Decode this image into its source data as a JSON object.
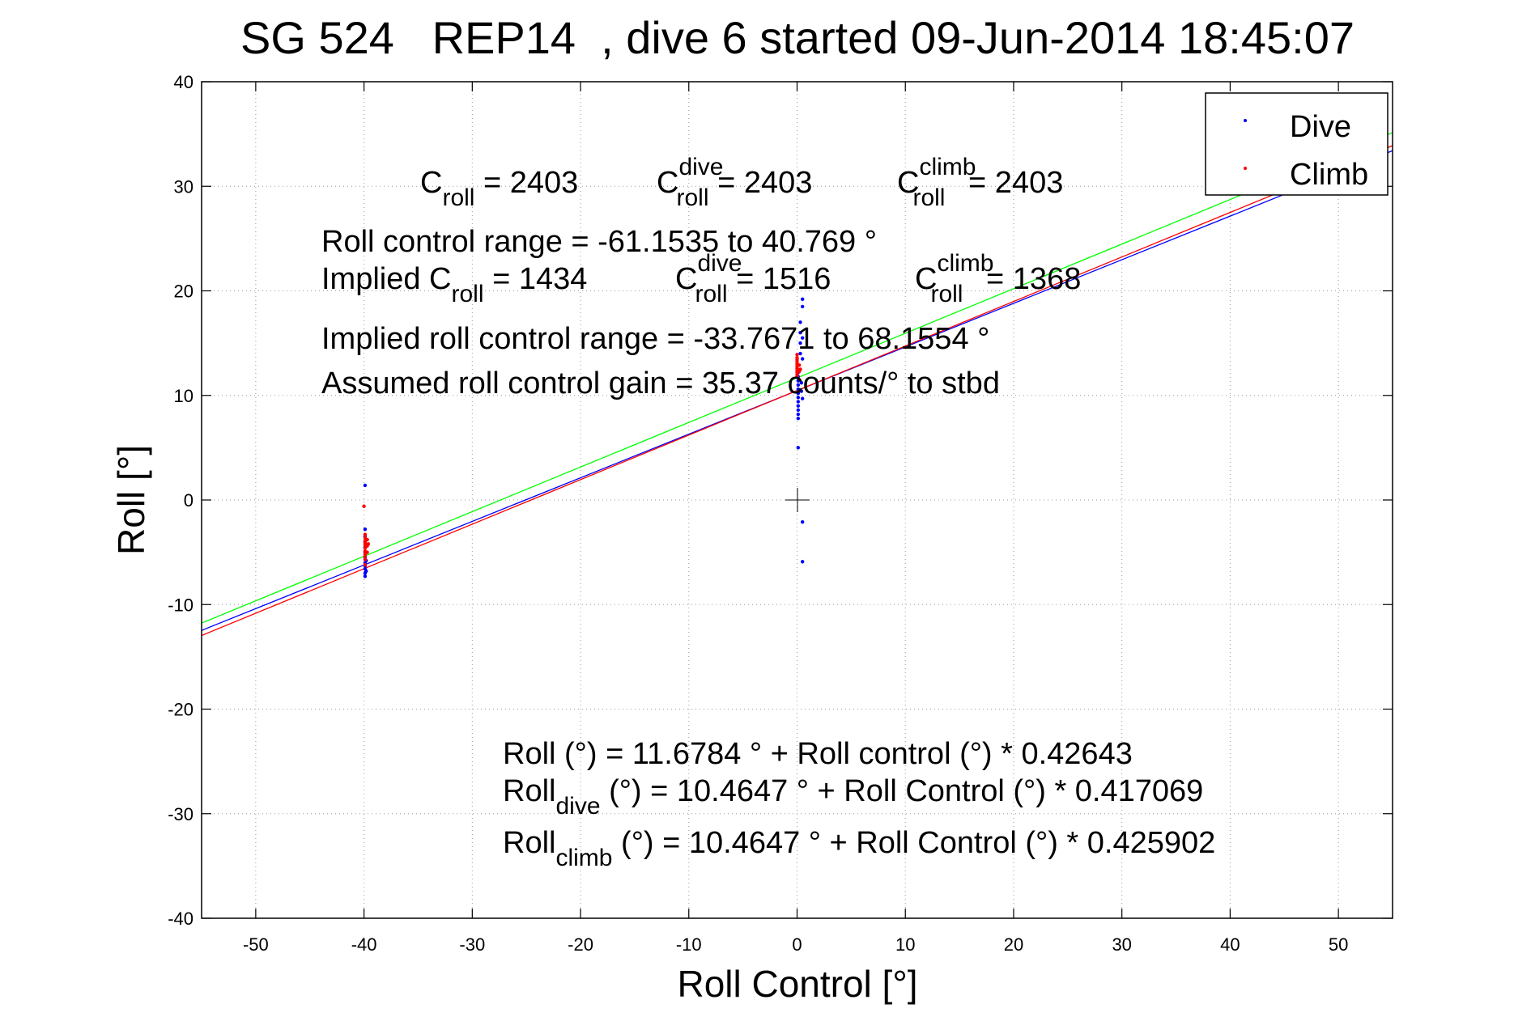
{
  "chart_data": {
    "type": "scatter",
    "title": "SG 524   REP14  , dive 6 started 09-Jun-2014 18:45:07",
    "xlabel": "Roll Control [°]",
    "ylabel": "Roll [°]",
    "xlim": [
      -55,
      55
    ],
    "ylim": [
      -40,
      40
    ],
    "xticks": [
      -50,
      -40,
      -30,
      -20,
      -10,
      0,
      10,
      20,
      30,
      40,
      50
    ],
    "yticks": [
      -40,
      -30,
      -20,
      -10,
      0,
      10,
      20,
      30,
      40
    ],
    "xtick_labels": [
      "-50",
      "-40",
      "-30",
      "-20",
      "-10",
      "0",
      "10",
      "20",
      "30",
      "40",
      "50"
    ],
    "ytick_labels": [
      "-40",
      "-30",
      "-20",
      "-10",
      "0",
      "10",
      "20",
      "30",
      "40"
    ],
    "grid": true,
    "legend": {
      "position": "top-right",
      "entries": [
        "Dive",
        "Climb"
      ]
    },
    "colors": {
      "dive": "#0000ff",
      "climb": "#ff0000",
      "fit_all": "#00ff00",
      "fit_dive": "#0000ff",
      "fit_climb": "#ff0000"
    },
    "series": [
      {
        "name": "Dive",
        "color": "#0000ff",
        "points": [
          [
            -39.9,
            1.4
          ],
          [
            -39.9,
            -2.8
          ],
          [
            -39.9,
            -3.5
          ],
          [
            -39.9,
            -4.0
          ],
          [
            -39.9,
            -4.5
          ],
          [
            -39.9,
            -5.0
          ],
          [
            -39.9,
            -5.5
          ],
          [
            -39.9,
            -6.0
          ],
          [
            -39.9,
            -6.3
          ],
          [
            -39.9,
            -6.6
          ],
          [
            -39.9,
            -7.0
          ],
          [
            -39.9,
            -7.3
          ],
          [
            -39.8,
            -5.8
          ],
          [
            -39.8,
            -6.8
          ],
          [
            0.1,
            5.0
          ],
          [
            0.1,
            7.8
          ],
          [
            0.1,
            8.2
          ],
          [
            0.1,
            8.6
          ],
          [
            0.1,
            9.0
          ],
          [
            0.1,
            9.4
          ],
          [
            0.1,
            9.8
          ],
          [
            0.1,
            10.2
          ],
          [
            0.1,
            10.6
          ],
          [
            0.1,
            11.0
          ],
          [
            0.1,
            11.4
          ],
          [
            0.1,
            11.8
          ],
          [
            0.1,
            12.2
          ],
          [
            0.3,
            14.0
          ],
          [
            0.3,
            15.0
          ],
          [
            0.3,
            16.0
          ],
          [
            0.3,
            17.0
          ],
          [
            0.5,
            18.5
          ],
          [
            0.5,
            19.2
          ],
          [
            0.5,
            15.5
          ],
          [
            0.5,
            13.5
          ],
          [
            0.5,
            9.7
          ],
          [
            0.4,
            10.4
          ],
          [
            0.4,
            11.2
          ],
          [
            0.5,
            -2.1
          ],
          [
            0.5,
            -5.9
          ]
        ]
      },
      {
        "name": "Climb",
        "color": "#ff0000",
        "points": [
          [
            -40.0,
            -0.6
          ],
          [
            -39.9,
            -3.3
          ],
          [
            -39.9,
            -3.6
          ],
          [
            -39.9,
            -3.9
          ],
          [
            -39.9,
            -4.1
          ],
          [
            -39.9,
            -4.3
          ],
          [
            -39.9,
            -4.6
          ],
          [
            -39.9,
            -4.9
          ],
          [
            -39.9,
            -5.2
          ],
          [
            -39.9,
            -5.4
          ],
          [
            -39.9,
            -5.7
          ],
          [
            -39.9,
            -6.2
          ],
          [
            -39.7,
            -3.8
          ],
          [
            -39.7,
            -4.4
          ],
          [
            -39.7,
            -5.0
          ],
          [
            -39.6,
            -4.2
          ],
          [
            0.0,
            11.8
          ],
          [
            0.0,
            12.0
          ],
          [
            0.0,
            12.2
          ],
          [
            0.0,
            12.4
          ],
          [
            0.0,
            12.6
          ],
          [
            0.0,
            12.8
          ],
          [
            0.0,
            13.0
          ],
          [
            0.0,
            13.2
          ],
          [
            0.0,
            13.4
          ],
          [
            0.0,
            13.6
          ],
          [
            0.0,
            13.9
          ],
          [
            0.2,
            12.3
          ],
          [
            0.2,
            12.9
          ],
          [
            0.3,
            12.5
          ]
        ]
      }
    ],
    "fit_lines": [
      {
        "name": "fit_all",
        "color": "#00ff00",
        "intercept": 11.6784,
        "slope": 0.42643
      },
      {
        "name": "fit_dive",
        "color": "#0000ff",
        "intercept": 10.4647,
        "slope": 0.417069
      },
      {
        "name": "fit_climb",
        "color": "#ff0000",
        "intercept": 10.4647,
        "slope": 0.425902
      }
    ],
    "annotations": {
      "c_roll": "2403",
      "c_roll_dive": "2403",
      "c_roll_climb": "2403",
      "range_line": "Roll control range = -61.1535 to 40.769 °",
      "implied_c_roll": "1434",
      "implied_c_roll_dive": "1516",
      "implied_c_roll_climb": "1368",
      "implied_range_line": "Implied roll control range = -33.7671 to 68.1554 °",
      "gain_line": "Assumed roll control gain = 35.37 counts/° to stbd",
      "eq_all": "Roll (°) = 11.6784 ° + Roll control (°) * 0.42643",
      "eq_dive_rest": " (°) = 10.4647 ° + Roll Control (°) * 0.417069",
      "eq_climb_rest": " (°) = 10.4647 ° + Roll Control (°) * 0.425902",
      "sym_C": "C",
      "sym_Implied_C": "Implied C",
      "sym_roll": "roll",
      "sym_dive": "dive",
      "sym_climb": "climb",
      "sym_Roll": "Roll",
      "eq_suffix": " = "
    }
  }
}
